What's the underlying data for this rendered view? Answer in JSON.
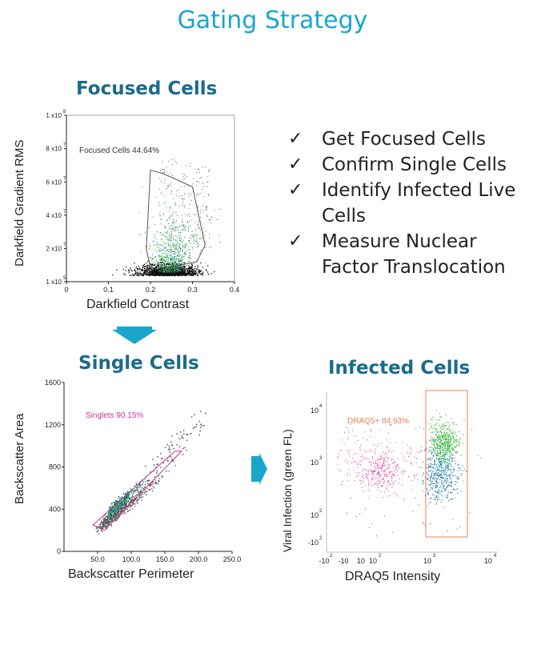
{
  "title": "Gating Strategy",
  "checklist": [
    "Get Focused Cells",
    "Confirm Single Cells",
    "Identify Infected Live Cells",
    "Measure Nuclear Factor Translocation"
  ],
  "colors": {
    "title": "#1aa6cc",
    "panel_title": "#1b6a8c",
    "arrow": "#1aa6cc",
    "focused_gate": "#555555",
    "singlets_gate": "#cc3399",
    "draq5_gate": "#f08050",
    "points_dense": "#111111",
    "points_green": "#3dbb3d",
    "points_blue": "#2a6fb5",
    "points_cyan": "#2ab3b3",
    "points_pink": "#e060b0",
    "points_grey": "#555555"
  },
  "chart_data": [
    {
      "type": "scatter",
      "title": "Focused Cells",
      "xlabel": "Darkfield Contrast",
      "ylabel": "Darkfield Gradient RMS",
      "xlim": [
        0,
        0.4
      ],
      "ylim": [
        100000,
        100000000
      ],
      "x_ticks": [
        "0",
        "0.1",
        "0.2",
        "0.3",
        "0.4"
      ],
      "y_ticks": [
        {
          "base": "1 x10",
          "exp": "5"
        },
        {
          "base": "2 x10",
          "exp": "7"
        },
        {
          "base": "4 x10",
          "exp": "7"
        },
        {
          "base": "6 x10",
          "exp": "7"
        },
        {
          "base": "8 x10",
          "exp": "7"
        },
        {
          "base": "1 x10",
          "exp": "8"
        }
      ],
      "gate": {
        "label": "Focused Cells",
        "value": "44.64%",
        "polygon": [
          [
            0.2,
            67000000
          ],
          [
            0.23,
            65000000
          ],
          [
            0.3,
            57000000
          ],
          [
            0.33,
            22000000
          ],
          [
            0.31,
            12000000
          ],
          [
            0.25,
            9000000
          ],
          [
            0.2,
            8000000
          ],
          [
            0.19,
            20000000
          ]
        ]
      }
    },
    {
      "type": "scatter",
      "title": "Single Cells",
      "xlabel": "Backscatter Perimeter",
      "ylabel": "Backscatter Area",
      "xlim": [
        0,
        250
      ],
      "ylim": [
        0,
        1600
      ],
      "x_ticks": [
        "50.0",
        "100.0",
        "150.0",
        "200.0",
        "250.0"
      ],
      "y_ticks": [
        "0",
        "400",
        "800",
        "1200",
        "1600"
      ],
      "gate": {
        "label": "Singlets",
        "value": "90.15%",
        "polygon": [
          [
            43,
            250
          ],
          [
            60,
            200
          ],
          [
            175,
            950
          ],
          [
            165,
            950
          ]
        ]
      }
    },
    {
      "type": "scatter",
      "title": "Infected Cells",
      "xlabel": "DRAQ5 Intensity",
      "ylabel": "Viral Infection (green FL)",
      "x_ticks": [
        {
          "base": "-10",
          "exp": "2"
        },
        {
          "base": "-10",
          "exp": ""
        },
        {
          "base": "10",
          "exp": ""
        },
        {
          "base": "10",
          "exp": "2"
        },
        {
          "base": "10",
          "exp": "3"
        },
        {
          "base": "10",
          "exp": "4"
        }
      ],
      "y_ticks": [
        {
          "base": "-10",
          "exp": "2"
        },
        {
          "base": "10",
          "exp": "2"
        },
        {
          "base": "10",
          "exp": "3"
        },
        {
          "base": "10",
          "exp": "4"
        }
      ],
      "gate": {
        "label": "DRAQ5+",
        "value": "84.93%"
      }
    }
  ]
}
